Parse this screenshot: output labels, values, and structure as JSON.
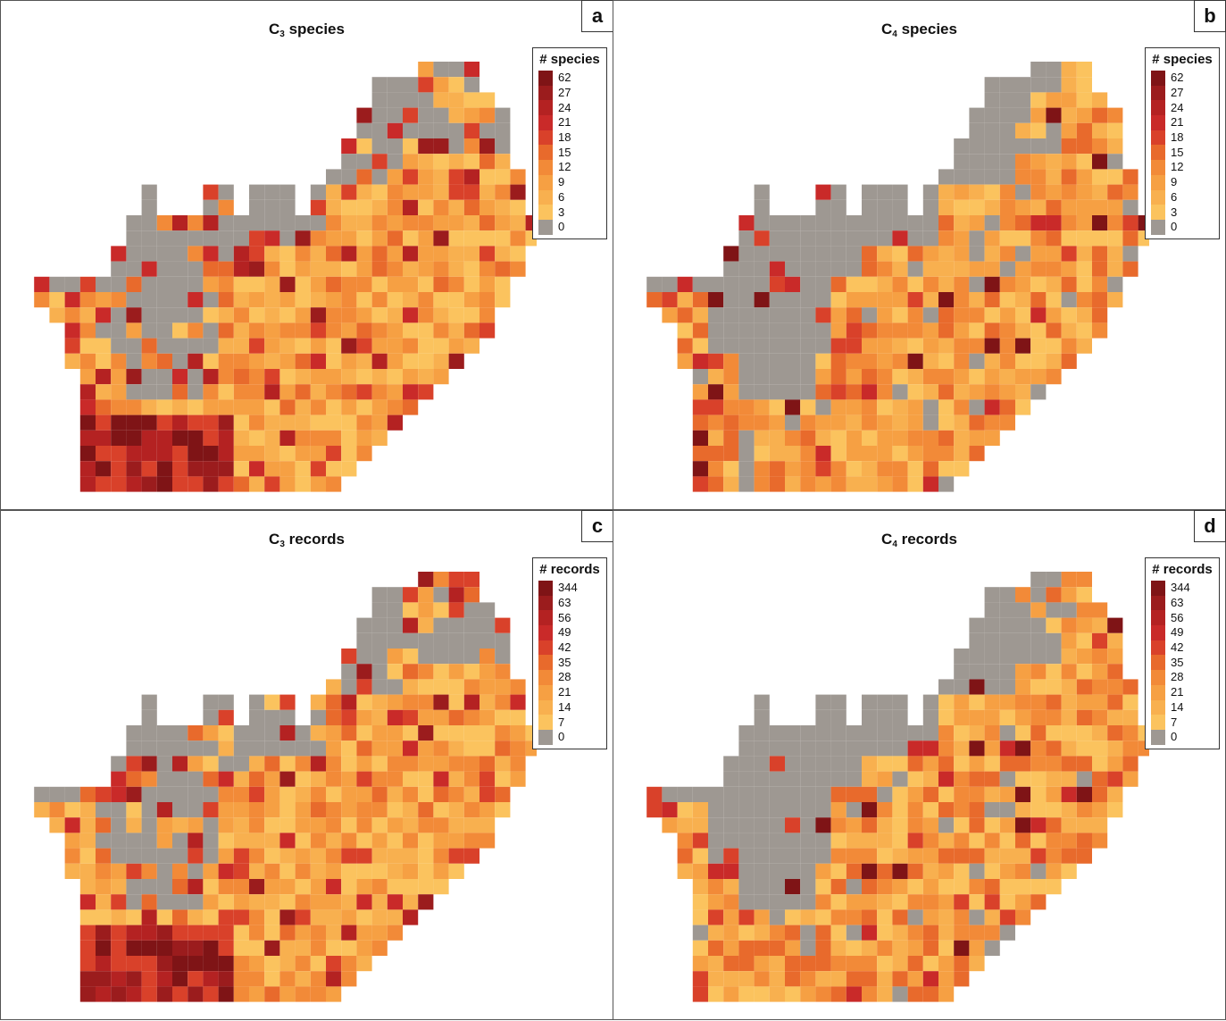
{
  "panels": [
    {
      "id": "a",
      "letter": "a",
      "title_main": "C",
      "title_sub": "3",
      "title_rest": " species",
      "legend_title": "# species",
      "mode": "c3sp"
    },
    {
      "id": "b",
      "letter": "b",
      "title_main": "C",
      "title_sub": "4",
      "title_rest": " species",
      "legend_title": "# species",
      "mode": "c4sp"
    },
    {
      "id": "c",
      "letter": "c",
      "title_main": "C",
      "title_sub": "3",
      "title_rest": " records",
      "legend_title": "# records",
      "mode": "c3rec"
    },
    {
      "id": "d",
      "letter": "d",
      "title_main": "C",
      "title_sub": "4",
      "title_rest": " records",
      "legend_title": "# records",
      "mode": "c4rec"
    }
  ],
  "legend_species": [
    "62",
    "27",
    "24",
    "21",
    "18",
    "15",
    "12",
    "9",
    "6",
    "3",
    "0"
  ],
  "legend_records": [
    "344",
    "63",
    "56",
    "49",
    "42",
    "35",
    "28",
    "21",
    "14",
    "7",
    "0"
  ],
  "colors": [
    "#7f1416",
    "#9b1c1d",
    "#b42222",
    "#c92a29",
    "#d9412a",
    "#e86a2c",
    "#f28a38",
    "#f6a043",
    "#f8b04f",
    "#fbc35e",
    "#9e9892"
  ]
}
